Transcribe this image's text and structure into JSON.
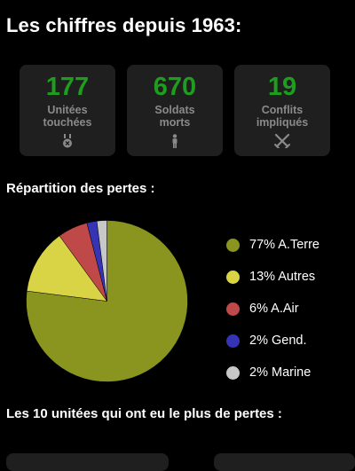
{
  "page": {
    "title": "Les chiffres depuis 1963:"
  },
  "stats": [
    {
      "value": "177",
      "label_line1": "Unitées",
      "label_line2": "touchées",
      "icon": "medal-icon"
    },
    {
      "value": "670",
      "label_line1": "Soldats",
      "label_line2": "morts",
      "icon": "soldier-icon"
    },
    {
      "value": "19",
      "label_line1": "Conflits",
      "label_line2": "impliqués",
      "icon": "crossed-swords-icon"
    }
  ],
  "colors": {
    "stat_value": "#1f9d1f",
    "stat_label": "#8a8a8a",
    "card_bg": "#1f1f1f"
  },
  "losses_section": {
    "title": "Répartition des pertes :"
  },
  "chart_data": {
    "type": "pie",
    "slices": [
      {
        "label": "77% A.Terre",
        "value": 77,
        "color": "#8a951f"
      },
      {
        "label": "13% Autres",
        "value": 13,
        "color": "#d8d445"
      },
      {
        "label": "6% A.Air",
        "value": 6,
        "color": "#bf4848"
      },
      {
        "label": "2% Gend.",
        "value": 2,
        "color": "#3434b4"
      },
      {
        "label": "2% Marine",
        "value": 2,
        "color": "#c8c8c8"
      }
    ],
    "start": "top",
    "direction": "clockwise",
    "legend": "right"
  },
  "top_units_section": {
    "title": "Les 10 unitées qui ont eu le plus de pertes :"
  }
}
